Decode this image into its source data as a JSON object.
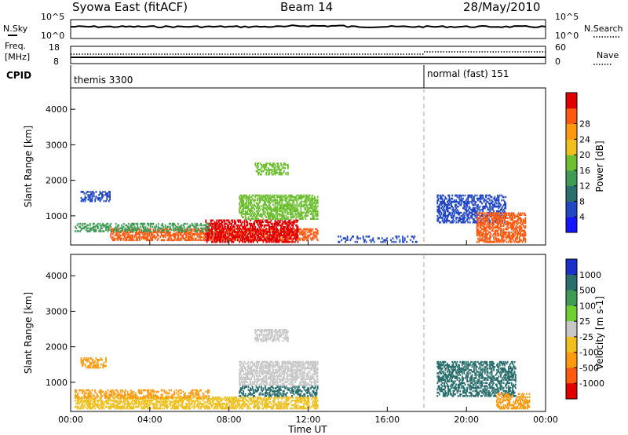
{
  "header": {
    "station": "Syowa East (fitACF)",
    "beam": "Beam 14",
    "date": "28/May/2010"
  },
  "side_labels": {
    "nsky": "N.Sky",
    "freq": "Freq.",
    "freq_unit": "[MHz]",
    "cpid": "CPID",
    "nsearch": "N.Search",
    "nave": "Nave"
  },
  "status_panels": {
    "noise": {
      "left_ticks": [
        "10^5",
        "10^0"
      ],
      "right_ticks": [
        "10^5",
        "10^0"
      ]
    },
    "freq": {
      "left_ticks": [
        "18",
        "8"
      ],
      "right_ticks": [
        "60",
        "0"
      ]
    }
  },
  "cpid_labels": [
    {
      "text": "themis 3300",
      "start_hour": 0
    },
    {
      "text": "normal (fast) 151",
      "start_hour": 18
    }
  ],
  "chart_data": [
    {
      "type": "heatmap",
      "name": "power",
      "ylabel": "Slant Range [km]",
      "y_ticks": [
        "1000",
        "2000",
        "3000",
        "4000"
      ],
      "ylim": [
        180,
        4600
      ],
      "xlim": [
        0,
        24
      ],
      "colorbar_label": "Power [dB]",
      "colorbar_ticks": [
        "4",
        "8",
        "12",
        "16",
        "20",
        "24",
        "28"
      ],
      "colorbar_colors": [
        "#1515ff",
        "#2247c4",
        "#2a6e6e",
        "#3f9a55",
        "#6fbf33",
        "#f0c020",
        "#ff9a10",
        "#ff5a10",
        "#e00000"
      ],
      "blobs": [
        {
          "t0": 2.0,
          "t1": 12.5,
          "r0": 300,
          "r1": 650,
          "color": "#ff5a10",
          "density": 0.55
        },
        {
          "t0": 6.8,
          "t1": 11.5,
          "r0": 250,
          "r1": 900,
          "color": "#e00000",
          "density": 0.55
        },
        {
          "t0": 0.2,
          "t1": 7.0,
          "r0": 550,
          "r1": 800,
          "color": "#3f9a55",
          "density": 0.4
        },
        {
          "t0": 0.5,
          "t1": 2.0,
          "r0": 1400,
          "r1": 1700,
          "color": "#2247c4",
          "density": 0.45
        },
        {
          "t0": 8.5,
          "t1": 12.5,
          "r0": 900,
          "r1": 1600,
          "color": "#6fbf33",
          "density": 0.55
        },
        {
          "t0": 9.3,
          "t1": 11.0,
          "r0": 2150,
          "r1": 2500,
          "color": "#6fbf33",
          "density": 0.5
        },
        {
          "t0": 18.5,
          "t1": 22.0,
          "r0": 800,
          "r1": 1600,
          "color": "#2247c4",
          "density": 0.45
        },
        {
          "t0": 20.5,
          "t1": 23.0,
          "r0": 250,
          "r1": 1100,
          "color": "#ff5a10",
          "density": 0.55
        },
        {
          "t0": 13.5,
          "t1": 17.5,
          "r0": 250,
          "r1": 450,
          "color": "#2247c4",
          "density": 0.25
        }
      ]
    },
    {
      "type": "heatmap",
      "name": "velocity",
      "ylabel": "Slant Range [km]",
      "y_ticks": [
        "1000",
        "2000",
        "3000",
        "4000"
      ],
      "ylim": [
        180,
        4600
      ],
      "xlim": [
        0,
        24
      ],
      "x_ticks": [
        "00:00",
        "04:00",
        "08:00",
        "12:00",
        "16:00",
        "20:00",
        "00:00"
      ],
      "xlabel": "Time UT",
      "colorbar_label": "Velocity [m s-1]",
      "colorbar_ticks": [
        "1000",
        "500",
        "100",
        "25",
        "-25",
        "-100",
        "-500",
        "-1000"
      ],
      "colorbar_colors": [
        "#1a30c8",
        "#2a6e6e",
        "#3f9a55",
        "#6fd030",
        "#c8c8c8",
        "#f0c020",
        "#ff9a10",
        "#ff5a10",
        "#e00000"
      ],
      "blobs": [
        {
          "t0": 0.2,
          "t1": 12.5,
          "r0": 250,
          "r1": 600,
          "color": "#f0c020",
          "density": 0.55
        },
        {
          "t0": 0.2,
          "t1": 7.0,
          "r0": 550,
          "r1": 800,
          "color": "#ff9a10",
          "density": 0.4
        },
        {
          "t0": 8.5,
          "t1": 12.5,
          "r0": 900,
          "r1": 1600,
          "color": "#c8c8c8",
          "density": 0.55
        },
        {
          "t0": 8.5,
          "t1": 12.5,
          "r0": 600,
          "r1": 900,
          "color": "#2a6e6e",
          "density": 0.4
        },
        {
          "t0": 9.3,
          "t1": 11.0,
          "r0": 2150,
          "r1": 2500,
          "color": "#c8c8c8",
          "density": 0.5
        },
        {
          "t0": 0.5,
          "t1": 1.8,
          "r0": 1400,
          "r1": 1700,
          "color": "#ff9a10",
          "density": 0.45
        },
        {
          "t0": 18.5,
          "t1": 22.5,
          "r0": 600,
          "r1": 1600,
          "color": "#2a6e6e",
          "density": 0.5
        },
        {
          "t0": 21.5,
          "t1": 23.2,
          "r0": 250,
          "r1": 700,
          "color": "#ff9a10",
          "density": 0.5
        }
      ]
    }
  ]
}
